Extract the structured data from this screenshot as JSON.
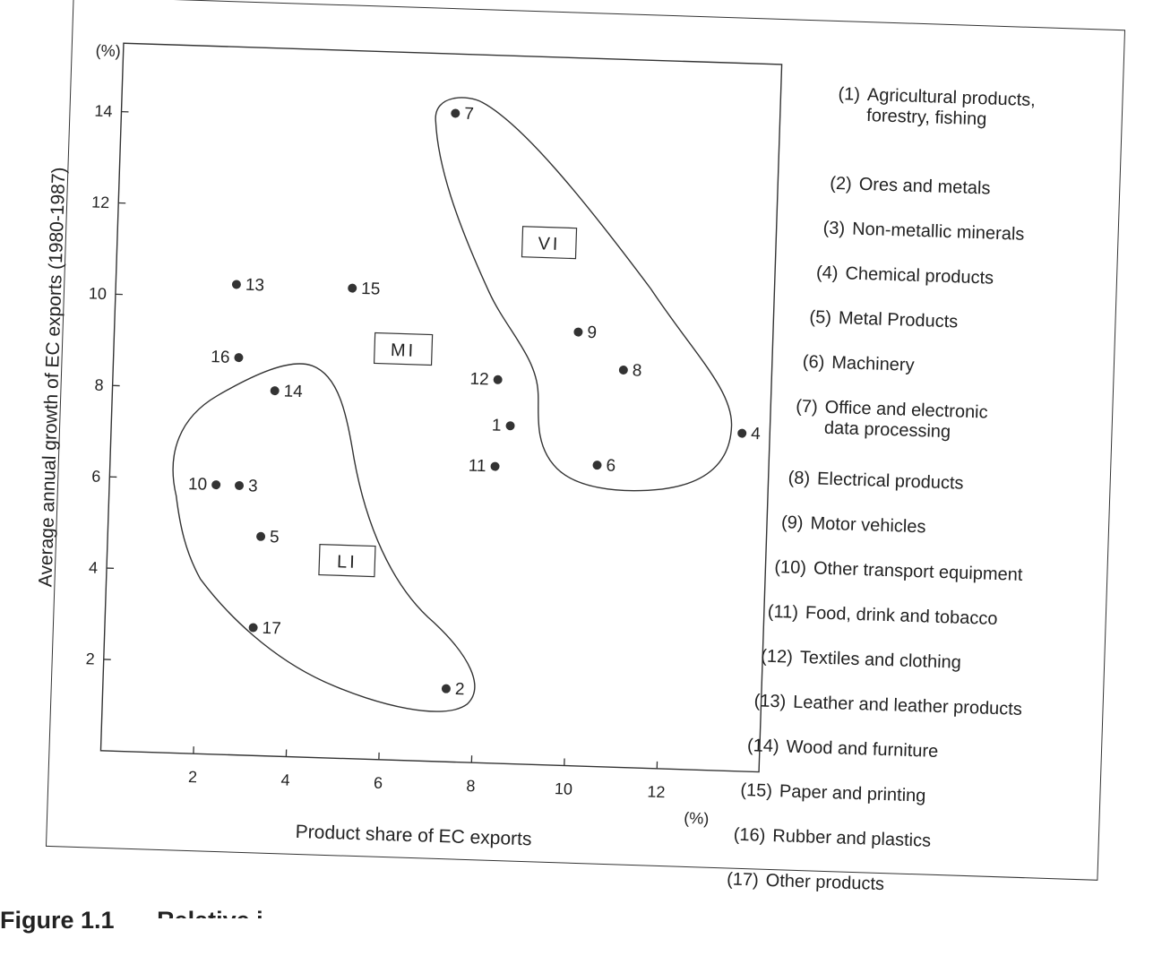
{
  "caption": {
    "figure_number": "Figure 1.1",
    "title_partial": "Relative i"
  },
  "legend": [
    {
      "num": "(1)",
      "label": "Agricultural products,\nforestry, fishing"
    },
    {
      "num": "(2)",
      "label": "Ores and metals"
    },
    {
      "num": "(3)",
      "label": "Non-metallic minerals"
    },
    {
      "num": "(4)",
      "label": "Chemical products"
    },
    {
      "num": "(5)",
      "label": "Metal Products"
    },
    {
      "num": "(6)",
      "label": "Machinery"
    },
    {
      "num": "(7)",
      "label": "Office and electronic\ndata processing"
    },
    {
      "num": "(8)",
      "label": "Electrical products"
    },
    {
      "num": "(9)",
      "label": "Motor vehicles"
    },
    {
      "num": "(10)",
      "label": "Other transport equipment"
    },
    {
      "num": "(11)",
      "label": "Food, drink and tobacco"
    },
    {
      "num": "(12)",
      "label": "Textiles and clothing"
    },
    {
      "num": "(13)",
      "label": "Leather and leather products"
    },
    {
      "num": "(14)",
      "label": "Wood and furniture"
    },
    {
      "num": "(15)",
      "label": "Paper and printing"
    },
    {
      "num": "(16)",
      "label": "Rubber and plastics"
    },
    {
      "num": "(17)",
      "label": "Other products"
    }
  ],
  "chart_data": {
    "type": "scatter",
    "xlabel": "Product share of EC exports",
    "ylabel": "Average annual growth of EC exports (1980-1987)",
    "x_unit": "(%)",
    "y_unit": "(%)",
    "xlim": [
      0,
      14.2
    ],
    "ylim": [
      0,
      15.5
    ],
    "x_ticks": [
      2,
      4,
      6,
      8,
      10,
      12
    ],
    "y_ticks": [
      2,
      4,
      6,
      8,
      10,
      12,
      14
    ],
    "grid": false,
    "points": [
      {
        "label": "1",
        "x": 8.6,
        "y": 7.4
      },
      {
        "label": "2",
        "x": 7.4,
        "y": 1.6
      },
      {
        "label": "3",
        "x": 2.8,
        "y": 5.9
      },
      {
        "label": "4",
        "x": 13.6,
        "y": 7.4
      },
      {
        "label": "5",
        "x": 3.3,
        "y": 4.8
      },
      {
        "label": "6",
        "x": 10.5,
        "y": 6.6
      },
      {
        "label": "7",
        "x": 7.2,
        "y": 14.2
      },
      {
        "label": "8",
        "x": 11.0,
        "y": 8.7
      },
      {
        "label": "9",
        "x": 10.0,
        "y": 9.5
      },
      {
        "label": "10",
        "x": 2.3,
        "y": 5.9
      },
      {
        "label": "11",
        "x": 8.3,
        "y": 6.5
      },
      {
        "label": "12",
        "x": 8.3,
        "y": 8.4
      },
      {
        "label": "13",
        "x": 2.6,
        "y": 10.3
      },
      {
        "label": "14",
        "x": 3.5,
        "y": 8.0
      },
      {
        "label": "15",
        "x": 5.1,
        "y": 10.3
      },
      {
        "label": "16",
        "x": 2.7,
        "y": 8.7
      },
      {
        "label": "17",
        "x": 3.2,
        "y": 2.8
      }
    ],
    "groups": [
      {
        "name": "VI"
      },
      {
        "name": "MI"
      },
      {
        "name": "LI"
      }
    ]
  }
}
